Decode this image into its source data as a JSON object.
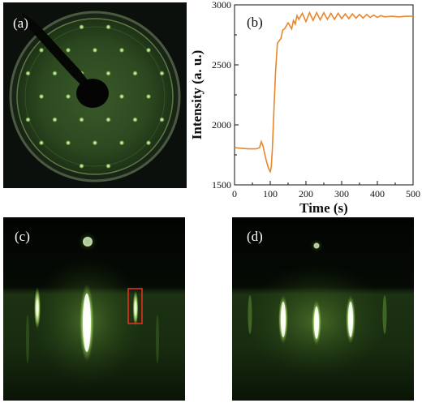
{
  "panels": {
    "a": {
      "label": "(a)"
    },
    "b": {
      "label": "(b)"
    },
    "c": {
      "label": "(c)"
    },
    "d": {
      "label": "(d)"
    }
  },
  "colors": {
    "curve": "#e8862a",
    "highlight_box": "#e0311f",
    "diffraction_green": "#b8f08a"
  },
  "chart_data": {
    "type": "line",
    "xlabel": "Time (s)",
    "ylabel": "Intensity (a. u.)",
    "xlim": [
      0,
      500
    ],
    "ylim": [
      1500,
      3000
    ],
    "x_ticks": [
      0,
      100,
      200,
      300,
      400,
      500
    ],
    "y_ticks": [
      1500,
      2000,
      2500,
      3000
    ],
    "grid": false,
    "series": [
      {
        "x": [
          0,
          20,
          40,
          60,
          70,
          75,
          80,
          85,
          90,
          95,
          100,
          103,
          106,
          110,
          115,
          120,
          125,
          130,
          135,
          140,
          150,
          160,
          165,
          170,
          175,
          180,
          190,
          200,
          210,
          220,
          230,
          240,
          250,
          260,
          270,
          280,
          290,
          300,
          310,
          320,
          330,
          340,
          350,
          360,
          370,
          380,
          390,
          400,
          410,
          420,
          440,
          460,
          480,
          500
        ],
        "y": [
          1810,
          1805,
          1800,
          1800,
          1810,
          1860,
          1820,
          1750,
          1690,
          1640,
          1610,
          1650,
          1800,
          2100,
          2450,
          2680,
          2700,
          2720,
          2790,
          2800,
          2850,
          2800,
          2870,
          2840,
          2910,
          2880,
          2930,
          2860,
          2935,
          2870,
          2935,
          2875,
          2935,
          2880,
          2930,
          2880,
          2930,
          2885,
          2925,
          2885,
          2925,
          2890,
          2920,
          2890,
          2920,
          2895,
          2915,
          2895,
          2910,
          2900,
          2905,
          2900,
          2905,
          2905
        ]
      }
    ]
  }
}
